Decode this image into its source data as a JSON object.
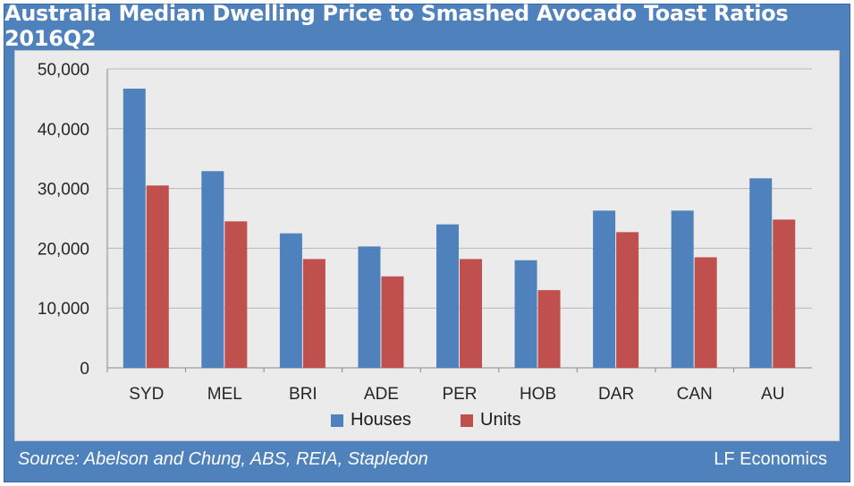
{
  "chart_data": {
    "type": "bar",
    "title": "Australia Median Dwelling Price to Smashed Avocado Toast Ratios 2016Q2",
    "categories": [
      "SYD",
      "MEL",
      "BRI",
      "ADE",
      "PER",
      "HOB",
      "DAR",
      "CAN",
      "AU"
    ],
    "series": [
      {
        "name": "Houses",
        "color": "#4f81bd",
        "values": [
          46700,
          32900,
          22500,
          20300,
          24000,
          18000,
          26300,
          26300,
          31700
        ]
      },
      {
        "name": "Units",
        "color": "#c0504d",
        "values": [
          30500,
          24500,
          18200,
          15300,
          18200,
          13000,
          22700,
          18500,
          24800
        ]
      }
    ],
    "ylim": [
      0,
      50000
    ],
    "yticks": [
      "0",
      "10,000",
      "20,000",
      "30,000",
      "40,000",
      "50,000"
    ],
    "grid": true,
    "legend_position": "bottom"
  },
  "footer": {
    "source": "Source:  Abelson and Chung, ABS, REIA, Stapledon",
    "brand": "LF Economics"
  }
}
